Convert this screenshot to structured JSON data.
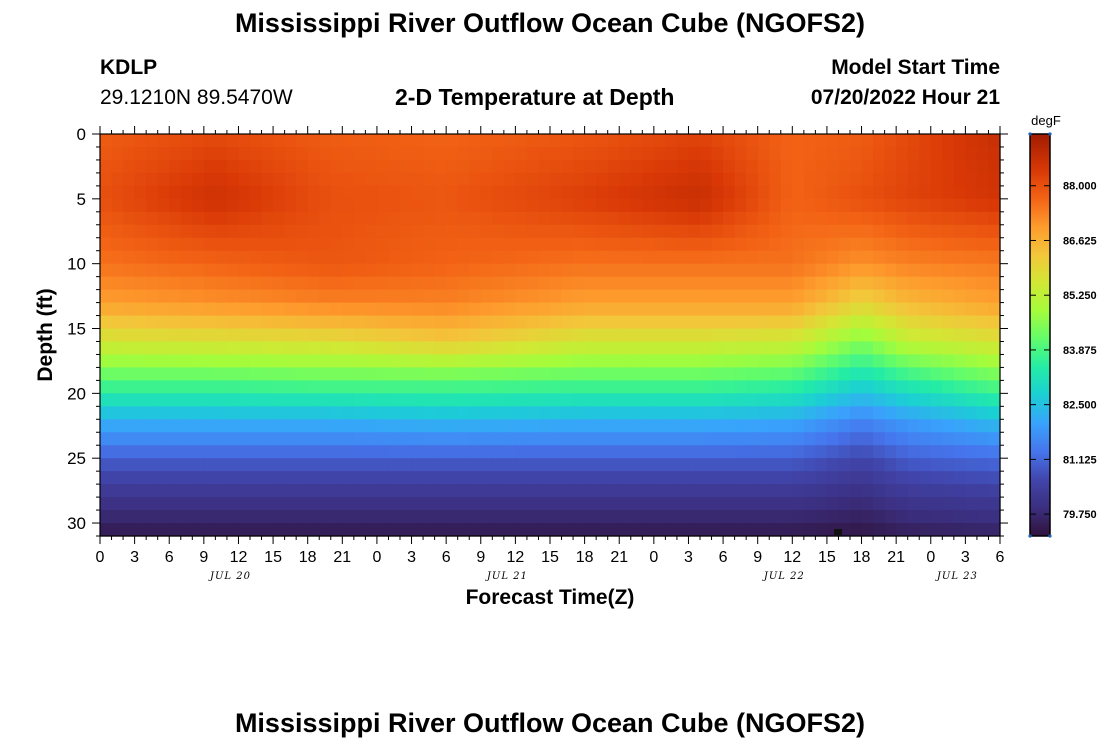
{
  "header": {
    "title": "Mississippi River Outflow Ocean Cube (NGOFS2)",
    "station": "KDLP",
    "coords": "29.1210N  89.5470W",
    "subtitle": "2-D Temperature at Depth",
    "model_start_label": "Model Start Time",
    "model_start_value": "07/20/2022 Hour 21"
  },
  "footer": {
    "title": "Mississippi River Outflow Ocean Cube (NGOFS2)"
  },
  "chart_data": {
    "type": "heatmap",
    "xlabel": "Forecast Time(Z)",
    "ylabel": "Depth (ft)",
    "x_range_hours": [
      0,
      78
    ],
    "y_range": [
      0,
      31
    ],
    "y_inverted": true,
    "x_tick_labels": [
      "0",
      "3",
      "6",
      "9",
      "12",
      "15",
      "18",
      "21",
      "0",
      "3",
      "6",
      "9",
      "12",
      "15",
      "18",
      "21",
      "0",
      "3",
      "6",
      "9",
      "12",
      "15",
      "18",
      "21",
      "0",
      "3",
      "6"
    ],
    "y_tick_labels": [
      "0",
      "5",
      "10",
      "15",
      "20",
      "25",
      "30"
    ],
    "y_ticks": [
      0,
      5,
      10,
      15,
      20,
      25,
      30
    ],
    "date_labels": [
      {
        "label": "JUL 20",
        "hour": 12
      },
      {
        "label": "JUL 21",
        "hour": 36
      },
      {
        "label": "JUL 22",
        "hour": 60
      },
      {
        "label": "JUL 23",
        "hour": 75
      }
    ],
    "colorbar": {
      "unit": "degF",
      "tick_labels": [
        "88.000",
        "86.625",
        "85.250",
        "83.875",
        "82.500",
        "81.125",
        "79.750"
      ],
      "ticks": [
        88.0,
        86.625,
        85.25,
        83.875,
        82.5,
        81.125,
        79.75
      ],
      "range": [
        79.2,
        89.3
      ]
    },
    "stops": [
      {
        "t": 0,
        "c": "#30123b"
      },
      {
        "t": 0.07,
        "c": "#3b2f80"
      },
      {
        "t": 0.14,
        "c": "#4145ab"
      },
      {
        "t": 0.21,
        "c": "#4675ed"
      },
      {
        "t": 0.28,
        "c": "#39a2fc"
      },
      {
        "t": 0.35,
        "c": "#1bcfd4"
      },
      {
        "t": 0.42,
        "c": "#24eca6"
      },
      {
        "t": 0.49,
        "c": "#61fc6c"
      },
      {
        "t": 0.56,
        "c": "#a4fc3b"
      },
      {
        "t": 0.63,
        "c": "#d1e834"
      },
      {
        "t": 0.7,
        "c": "#f3c63a"
      },
      {
        "t": 0.77,
        "c": "#fe9b2d"
      },
      {
        "t": 0.84,
        "c": "#f36315"
      },
      {
        "t": 0.91,
        "c": "#d93806"
      },
      {
        "t": 1,
        "c": "#a11d01"
      }
    ],
    "profiles": [
      {
        "hour": 0,
        "depths": [
          0,
          5,
          10,
          13,
          16,
          19,
          22,
          25,
          28,
          31
        ],
        "temps": [
          87.8,
          88.0,
          87.5,
          86.9,
          85.6,
          84.0,
          82.3,
          81.0,
          80.1,
          79.4
        ]
      },
      {
        "hour": 10,
        "depths": [
          0,
          5,
          10,
          13,
          16,
          19,
          22,
          25,
          28,
          31
        ],
        "temps": [
          88.1,
          88.6,
          87.7,
          87.1,
          85.7,
          84.0,
          82.3,
          81.0,
          80.1,
          79.4
        ]
      },
      {
        "hour": 20,
        "depths": [
          0,
          5,
          10,
          13,
          16,
          19,
          22,
          25,
          28,
          31
        ],
        "temps": [
          87.8,
          88.0,
          87.9,
          87.3,
          85.8,
          84.1,
          82.3,
          81.0,
          80.1,
          79.4
        ]
      },
      {
        "hour": 30,
        "depths": [
          0,
          5,
          10,
          13,
          16,
          19,
          22,
          25,
          28,
          31
        ],
        "temps": [
          87.7,
          87.9,
          87.7,
          87.3,
          86.2,
          84.1,
          82.4,
          81.0,
          80.1,
          79.4
        ]
      },
      {
        "hour": 42,
        "depths": [
          0,
          5,
          10,
          13,
          16,
          19,
          22,
          25,
          28,
          31
        ],
        "temps": [
          87.9,
          88.3,
          87.5,
          86.9,
          85.6,
          84.0,
          82.3,
          81.0,
          80.1,
          79.4
        ]
      },
      {
        "hour": 52,
        "depths": [
          0,
          5,
          10,
          13,
          16,
          19,
          22,
          25,
          28,
          31
        ],
        "temps": [
          88.2,
          88.7,
          87.5,
          86.9,
          85.6,
          84.0,
          82.3,
          81.0,
          80.1,
          79.4
        ]
      },
      {
        "hour": 60,
        "depths": [
          0,
          5,
          10,
          13,
          16,
          19,
          22,
          25,
          28,
          31
        ],
        "temps": [
          87.7,
          87.7,
          87.5,
          86.9,
          85.5,
          83.8,
          82.2,
          81.0,
          80.1,
          79.4
        ]
      },
      {
        "hour": 66,
        "depths": [
          0,
          5,
          10,
          13,
          16,
          19,
          22,
          25,
          28,
          31
        ],
        "temps": [
          87.8,
          88.0,
          87.1,
          86.0,
          84.5,
          83.0,
          81.6,
          80.6,
          79.9,
          79.3
        ]
      },
      {
        "hour": 70,
        "depths": [
          0,
          5,
          10,
          13,
          16,
          19,
          22,
          25,
          28,
          31
        ],
        "temps": [
          88.1,
          88.2,
          87.3,
          86.5,
          85.3,
          83.5,
          82.0,
          81.0,
          80.2,
          79.5
        ]
      },
      {
        "hour": 78,
        "depths": [
          0,
          5,
          10,
          13,
          16,
          19,
          22,
          25,
          28,
          31
        ],
        "temps": [
          88.7,
          88.5,
          87.4,
          86.9,
          85.7,
          84.2,
          82.5,
          81.2,
          80.3,
          79.6
        ]
      }
    ]
  }
}
